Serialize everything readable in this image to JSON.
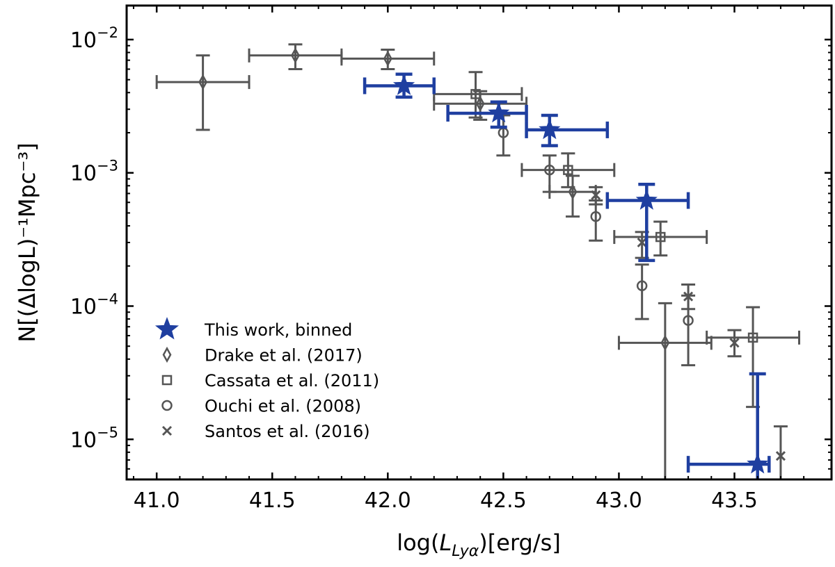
{
  "chart_data": {
    "type": "scatter",
    "title": "",
    "xlabel_prefix": "log(",
    "xlabel_symbol": "L",
    "xlabel_subscript": "Lyα",
    "xlabel_suffix": ")[erg/s]",
    "ylabel": "N[(ΔlogL)⁻¹Mpc⁻³]",
    "xscale": "linear",
    "yscale": "log",
    "xlim": [
      40.87,
      43.92
    ],
    "ylim": [
      5e-06,
      0.018
    ],
    "xticks": [
      41.0,
      41.5,
      42.0,
      42.5,
      43.0,
      43.5
    ],
    "xtick_labels": [
      "41.0",
      "41.5",
      "42.0",
      "42.5",
      "43.0",
      "43.5"
    ],
    "yticks": [
      1e-05,
      0.0001,
      0.001,
      0.01
    ],
    "ytick_labels": [
      {
        "base": "10",
        "exp": "−5"
      },
      {
        "base": "10",
        "exp": "−4"
      },
      {
        "base": "10",
        "exp": "−3"
      },
      {
        "base": "10",
        "exp": "−2"
      }
    ],
    "legend_position": "lower-left",
    "series": [
      {
        "name": "This work, binned",
        "marker": "star",
        "color": "#1f3fa0",
        "points": [
          {
            "x": 42.07,
            "y": 0.0045,
            "xlo": 41.9,
            "xhi": 42.2,
            "ylo": 0.0037,
            "yhi": 0.0055
          },
          {
            "x": 42.48,
            "y": 0.0028,
            "xlo": 42.26,
            "xhi": 42.6,
            "ylo": 0.0022,
            "yhi": 0.0034
          },
          {
            "x": 42.7,
            "y": 0.0021,
            "xlo": 42.6,
            "xhi": 42.95,
            "ylo": 0.0016,
            "yhi": 0.0027
          },
          {
            "x": 43.12,
            "y": 0.00062,
            "xlo": 42.95,
            "xhi": 43.3,
            "ylo": 0.00022,
            "yhi": 0.00082
          },
          {
            "x": 43.6,
            "y": 6.5e-06,
            "xlo": 43.3,
            "xhi": 43.65,
            "ylo": 1e-07,
            "yhi": 3.1e-05
          }
        ]
      },
      {
        "name": "Drake et al. (2017)",
        "marker": "thin_diamond",
        "color": "#555555",
        "points": [
          {
            "x": 41.2,
            "y": 0.0048,
            "xlo": 41.0,
            "xhi": 41.4,
            "ylo": 0.0021,
            "yhi": 0.0076
          },
          {
            "x": 41.6,
            "y": 0.0076,
            "xlo": 41.4,
            "xhi": 41.8,
            "ylo": 0.006,
            "yhi": 0.0092
          },
          {
            "x": 42.0,
            "y": 0.0072,
            "xlo": 41.8,
            "xhi": 42.2,
            "ylo": 0.006,
            "yhi": 0.0084
          },
          {
            "x": 42.4,
            "y": 0.0033,
            "xlo": 42.2,
            "xhi": 42.6,
            "ylo": 0.0025,
            "yhi": 0.0041
          },
          {
            "x": 42.8,
            "y": 0.00072,
            "xlo": 42.7,
            "xhi": 42.9,
            "ylo": 0.00047,
            "yhi": 0.00095
          },
          {
            "x": 43.2,
            "y": 5.3e-05,
            "xlo": 43.0,
            "xhi": 43.4,
            "ylo": 1e-07,
            "yhi": 0.000105
          }
        ]
      },
      {
        "name": "Cassata et al. (2011)",
        "marker": "square",
        "color": "#555555",
        "points": [
          {
            "x": 42.38,
            "y": 0.0039,
            "xlo": 42.2,
            "xhi": 42.58,
            "ylo": 0.0026,
            "yhi": 0.0057
          },
          {
            "x": 42.78,
            "y": 0.00105,
            "xlo": 42.58,
            "xhi": 42.98,
            "ylo": 0.00078,
            "yhi": 0.0014
          },
          {
            "x": 43.18,
            "y": 0.00033,
            "xlo": 42.98,
            "xhi": 43.38,
            "ylo": 0.00024,
            "yhi": 0.00043
          },
          {
            "x": 43.58,
            "y": 5.8e-05,
            "xlo": 43.38,
            "xhi": 43.78,
            "ylo": 1.75e-05,
            "yhi": 9.8e-05
          }
        ]
      },
      {
        "name": "Ouchi et al. (2008)",
        "marker": "circle",
        "color": "#555555",
        "points": [
          {
            "x": 42.5,
            "y": 0.002,
            "xlo": 42.5,
            "xhi": 42.5,
            "ylo": 0.00135,
            "yhi": 0.0027
          },
          {
            "x": 42.7,
            "y": 0.00105,
            "xlo": 42.7,
            "xhi": 42.7,
            "ylo": 0.00072,
            "yhi": 0.00135
          },
          {
            "x": 42.9,
            "y": 0.00047,
            "xlo": 42.9,
            "xhi": 42.9,
            "ylo": 0.00031,
            "yhi": 0.00062
          },
          {
            "x": 43.1,
            "y": 0.000142,
            "xlo": 43.1,
            "xhi": 43.1,
            "ylo": 8e-05,
            "yhi": 0.000205
          },
          {
            "x": 43.3,
            "y": 7.8e-05,
            "xlo": 43.3,
            "xhi": 43.3,
            "ylo": 3.6e-05,
            "yhi": 0.00012
          }
        ]
      },
      {
        "name": "Santos et al. (2016)",
        "marker": "x",
        "color": "#555555",
        "points": [
          {
            "x": 42.9,
            "y": 0.00068,
            "xlo": 42.9,
            "xhi": 42.9,
            "ylo": 0.00058,
            "yhi": 0.00078
          },
          {
            "x": 43.1,
            "y": 0.0003,
            "xlo": 43.1,
            "xhi": 43.1,
            "ylo": 0.00023,
            "yhi": 0.00036
          },
          {
            "x": 43.3,
            "y": 0.000118,
            "xlo": 43.3,
            "xhi": 43.3,
            "ylo": 9.5e-05,
            "yhi": 0.000145
          },
          {
            "x": 43.5,
            "y": 5.3e-05,
            "xlo": 43.5,
            "xhi": 43.5,
            "ylo": 4.2e-05,
            "yhi": 6.6e-05
          },
          {
            "x": 43.7,
            "y": 7.5e-06,
            "xlo": 43.7,
            "xhi": 43.7,
            "ylo": 1e-07,
            "yhi": 1.25e-05
          }
        ]
      }
    ]
  }
}
